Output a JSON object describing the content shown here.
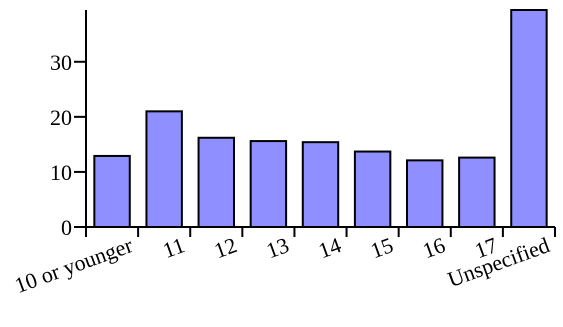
{
  "chart_data": {
    "type": "bar",
    "title": "",
    "xlabel": "",
    "ylabel": "",
    "categories": [
      "10 or younger",
      "11",
      "12",
      "13",
      "14",
      "15",
      "16",
      "17",
      "Unspecified"
    ],
    "values": [
      12.9,
      21.0,
      16.2,
      15.6,
      15.4,
      13.7,
      12.1,
      12.6,
      39.4
    ],
    "ylim": [
      0,
      39.4
    ],
    "yticks": [
      0,
      10,
      20,
      30
    ],
    "ytick_labels": [
      "0",
      "10",
      "20",
      "30"
    ],
    "grid": false,
    "legend": "none",
    "bar_color": "#8f8fff",
    "bar_outline_color": "#000000"
  }
}
